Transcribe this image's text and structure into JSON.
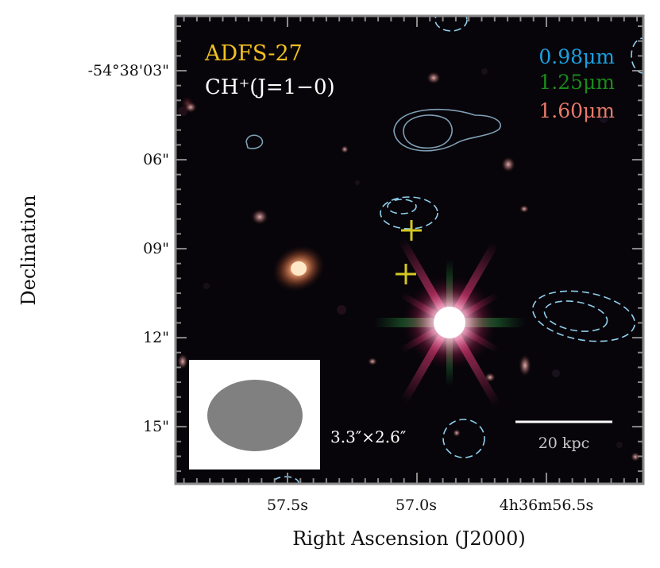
{
  "figure": {
    "source_name": "ADFS-27",
    "line_label": "CH⁺(J=1−0)",
    "filters": [
      {
        "label": "0.98μm",
        "color": "#1aa0e0"
      },
      {
        "label": "1.25μm",
        "color": "#1a8a1a"
      },
      {
        "label": "1.60μm",
        "color": "#e87a6a"
      }
    ],
    "beam_label": "3.3″×2.6″",
    "scalebar_label": "20 kpc",
    "title_color": "#f3c020",
    "contour_positive_color": "#7f9fb5",
    "contour_negative_color": "#8fd0ee",
    "marker_color": "#d4c820"
  },
  "axes": {
    "xlabel": "Right Ascension (J2000)",
    "ylabel": "Declination",
    "xticks": [
      "57.5s",
      "57.0s",
      "4h36m56.5s"
    ],
    "yticks": [
      "-54°38'03\"",
      "06\"",
      "09\"",
      "12\"",
      "15\""
    ]
  }
}
